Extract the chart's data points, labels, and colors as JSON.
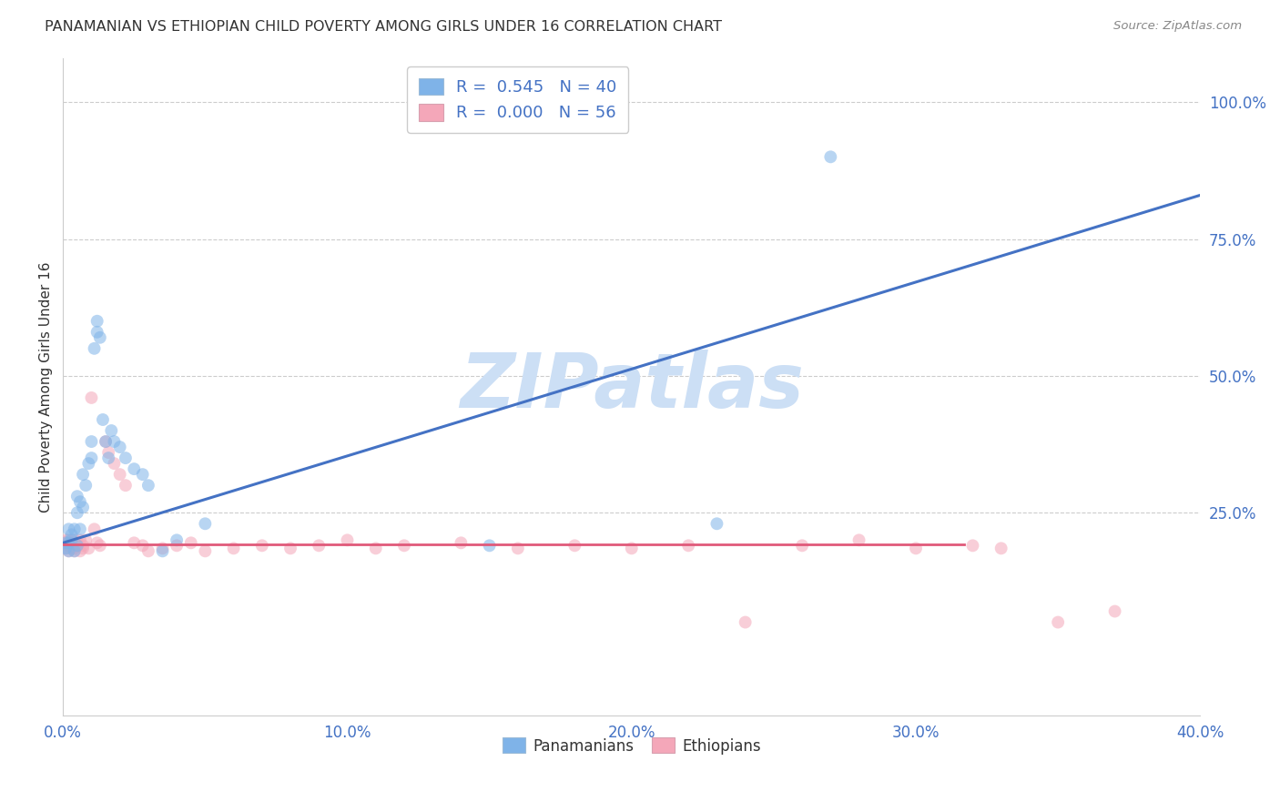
{
  "title": "PANAMANIAN VS ETHIOPIAN CHILD POVERTY AMONG GIRLS UNDER 16 CORRELATION CHART",
  "source": "Source: ZipAtlas.com",
  "ylabel": "Child Poverty Among Girls Under 16",
  "xlim": [
    0.0,
    0.4
  ],
  "ylim": [
    -0.12,
    1.08
  ],
  "xticks": [
    0.0,
    0.1,
    0.2,
    0.3,
    0.4
  ],
  "xtick_labels": [
    "0.0%",
    "10.0%",
    "20.0%",
    "30.0%",
    "40.0%"
  ],
  "yticks": [
    0.25,
    0.5,
    0.75,
    1.0
  ],
  "ytick_labels": [
    "25.0%",
    "50.0%",
    "75.0%",
    "100.0%"
  ],
  "grid_color": "#cccccc",
  "background_color": "#ffffff",
  "title_fontsize": 11.5,
  "axis_label_fontsize": 11,
  "tick_fontsize": 12,
  "watermark_text": "ZIPatlas",
  "watermark_color": "#ccdff5",
  "watermark_fontsize": 60,
  "legend_line1": "R =  0.545   N = 40",
  "legend_line2": "R =  0.000   N = 56",
  "blue_color": "#7fb3e8",
  "pink_color": "#f4a7b9",
  "blue_line_color": "#4472c4",
  "pink_line_color": "#e05a7a",
  "dot_size": 100,
  "dot_alpha": 0.55,
  "blue_points_x": [
    0.001,
    0.001,
    0.002,
    0.002,
    0.002,
    0.003,
    0.003,
    0.004,
    0.004,
    0.005,
    0.005,
    0.005,
    0.006,
    0.006,
    0.007,
    0.007,
    0.008,
    0.009,
    0.01,
    0.01,
    0.011,
    0.012,
    0.012,
    0.013,
    0.014,
    0.015,
    0.016,
    0.017,
    0.018,
    0.02,
    0.022,
    0.025,
    0.028,
    0.03,
    0.035,
    0.04,
    0.05,
    0.15,
    0.23,
    0.27
  ],
  "blue_points_y": [
    0.195,
    0.185,
    0.18,
    0.195,
    0.22,
    0.2,
    0.21,
    0.18,
    0.22,
    0.19,
    0.25,
    0.28,
    0.22,
    0.27,
    0.32,
    0.26,
    0.3,
    0.34,
    0.35,
    0.38,
    0.55,
    0.58,
    0.6,
    0.57,
    0.42,
    0.38,
    0.35,
    0.4,
    0.38,
    0.37,
    0.35,
    0.33,
    0.32,
    0.3,
    0.18,
    0.2,
    0.23,
    0.19,
    0.23,
    0.9
  ],
  "pink_points_x": [
    0.001,
    0.001,
    0.001,
    0.002,
    0.002,
    0.002,
    0.003,
    0.003,
    0.003,
    0.004,
    0.004,
    0.004,
    0.005,
    0.005,
    0.006,
    0.006,
    0.007,
    0.007,
    0.008,
    0.009,
    0.01,
    0.011,
    0.012,
    0.013,
    0.015,
    0.016,
    0.018,
    0.02,
    0.022,
    0.025,
    0.028,
    0.03,
    0.035,
    0.04,
    0.045,
    0.05,
    0.06,
    0.07,
    0.08,
    0.09,
    0.1,
    0.11,
    0.12,
    0.14,
    0.16,
    0.18,
    0.2,
    0.22,
    0.24,
    0.26,
    0.28,
    0.3,
    0.32,
    0.33,
    0.35,
    0.37
  ],
  "pink_points_y": [
    0.2,
    0.185,
    0.195,
    0.18,
    0.19,
    0.2,
    0.185,
    0.19,
    0.195,
    0.18,
    0.2,
    0.185,
    0.19,
    0.195,
    0.18,
    0.2,
    0.185,
    0.19,
    0.2,
    0.185,
    0.46,
    0.22,
    0.195,
    0.19,
    0.38,
    0.36,
    0.34,
    0.32,
    0.3,
    0.195,
    0.19,
    0.18,
    0.185,
    0.19,
    0.195,
    0.18,
    0.185,
    0.19,
    0.185,
    0.19,
    0.2,
    0.185,
    0.19,
    0.195,
    0.185,
    0.19,
    0.185,
    0.19,
    0.05,
    0.19,
    0.2,
    0.185,
    0.19,
    0.185,
    0.05,
    0.07
  ],
  "blue_trend_x": [
    0.0,
    0.4
  ],
  "blue_trend_y": [
    0.195,
    0.83
  ],
  "pink_trend_x": [
    0.0,
    0.317
  ],
  "pink_trend_y": [
    0.192,
    0.192
  ]
}
